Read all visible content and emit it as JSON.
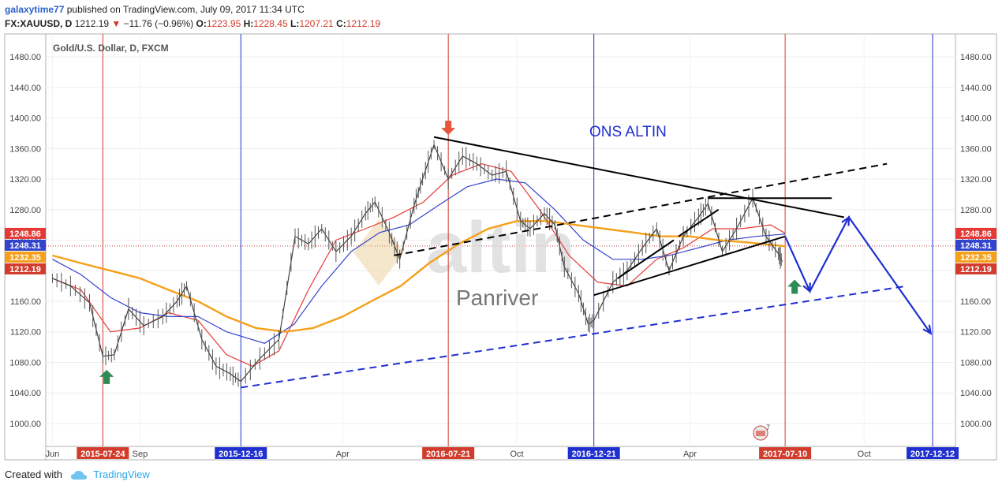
{
  "header": {
    "author": "galaxytime77",
    "published_text": "published on TradingView.com, July 09, 2017 11:34 UTC",
    "symbol": "FX:XAUUSD, D",
    "last_price": "1212.19",
    "change_arrow": "▼",
    "change": "−11.76 (−0.96%)",
    "open_label": "O:",
    "open": "1223.95",
    "high_label": "H:",
    "high": "1228.45",
    "low_label": "L:",
    "low": "1207.21",
    "close_label": "C:",
    "close": "1212.19"
  },
  "footer": {
    "created_with": "Created with",
    "brand": "TradingView"
  },
  "icons": {
    "tradingview_logo": "cloud-icon",
    "earnings_flag": "flag-icon"
  },
  "colors": {
    "price_red": "#d23c2c",
    "ma_red": "#e53935",
    "ma_blue": "#3344cc",
    "ma_orange": "#f5a01a",
    "marker_red": "#e8553d",
    "marker_green": "#2e8b57",
    "drawing_blue": "#1f2fd0"
  },
  "chart_data": {
    "type": "line",
    "title": "Gold/U.S. Dollar, D, FXCM",
    "annotations": {
      "ons_altin": "ONS ALTIN",
      "panriver": "Panriver",
      "watermark": "altin",
      "event_count": "7"
    },
    "y_axis": {
      "ticks": [
        1480,
        1440,
        1400,
        1360,
        1320,
        1280,
        1240,
        1200,
        1160,
        1120,
        1080,
        1040,
        1000
      ],
      "range": [
        970,
        1510
      ]
    },
    "x_axis": {
      "ticks": [
        {
          "label": "Jun",
          "date": "2015-06-01"
        },
        {
          "label": "Sep",
          "date": "2015-09-01"
        },
        {
          "label": "Apr",
          "date": "2016-04-01"
        },
        {
          "label": "Oct",
          "date": "2016-10-01"
        },
        {
          "label": "Apr",
          "date": "2017-04-01"
        },
        {
          "label": "Oct",
          "date": "2017-10-01"
        }
      ],
      "range": [
        "2015-05-25",
        "2018-01-05"
      ]
    },
    "vertical_lines": [
      {
        "date": "2015-07-24",
        "label": "2015-07-24",
        "color": "#d23c2c"
      },
      {
        "date": "2015-12-16",
        "label": "2015-12-16",
        "color": "#1f2fd0"
      },
      {
        "date": "2016-07-21",
        "label": "2016-07-21",
        "color": "#d23c2c"
      },
      {
        "date": "2016-12-21",
        "label": "2016-12-21",
        "color": "#1f2fd0"
      },
      {
        "date": "2017-07-10",
        "label": "2017-07-10",
        "color": "#d23c2c"
      },
      {
        "date": "2017-12-12",
        "label": "2017-12-12",
        "color": "#1f2fd0"
      }
    ],
    "price_labels": [
      {
        "value": "1248.86",
        "y": 1248.86,
        "color": "#e53935"
      },
      {
        "value": "1248.31",
        "y": 1248.31,
        "color": "#3344cc"
      },
      {
        "value": "1232.35",
        "y": 1232.35,
        "color": "#f5a01a"
      },
      {
        "value": "1212.19",
        "y": 1212.19,
        "color": "#d23c2c"
      }
    ],
    "series": [
      {
        "name": "XAUUSD",
        "color": "#333333",
        "points": [
          [
            "2015-06-01",
            1190
          ],
          [
            "2015-06-20",
            1180
          ],
          [
            "2015-07-10",
            1158
          ],
          [
            "2015-07-24",
            1088
          ],
          [
            "2015-08-05",
            1090
          ],
          [
            "2015-08-20",
            1150
          ],
          [
            "2015-09-05",
            1128
          ],
          [
            "2015-09-25",
            1140
          ],
          [
            "2015-10-10",
            1160
          ],
          [
            "2015-10-20",
            1180
          ],
          [
            "2015-11-05",
            1110
          ],
          [
            "2015-11-20",
            1075
          ],
          [
            "2015-12-05",
            1065
          ],
          [
            "2015-12-16",
            1055
          ],
          [
            "2016-01-05",
            1085
          ],
          [
            "2016-01-25",
            1110
          ],
          [
            "2016-02-11",
            1245
          ],
          [
            "2016-02-25",
            1235
          ],
          [
            "2016-03-10",
            1255
          ],
          [
            "2016-03-25",
            1225
          ],
          [
            "2016-04-10",
            1245
          ],
          [
            "2016-04-25",
            1275
          ],
          [
            "2016-05-05",
            1290
          ],
          [
            "2016-05-20",
            1250
          ],
          [
            "2016-05-31",
            1215
          ],
          [
            "2016-06-15",
            1285
          ],
          [
            "2016-06-24",
            1320
          ],
          [
            "2016-07-06",
            1365
          ],
          [
            "2016-07-21",
            1320
          ],
          [
            "2016-08-05",
            1350
          ],
          [
            "2016-08-20",
            1340
          ],
          [
            "2016-09-05",
            1325
          ],
          [
            "2016-09-20",
            1330
          ],
          [
            "2016-10-05",
            1265
          ],
          [
            "2016-10-15",
            1255
          ],
          [
            "2016-10-30",
            1275
          ],
          [
            "2016-11-10",
            1260
          ],
          [
            "2016-11-20",
            1205
          ],
          [
            "2016-12-05",
            1170
          ],
          [
            "2016-12-15",
            1130
          ],
          [
            "2016-12-21",
            1135
          ],
          [
            "2017-01-10",
            1185
          ],
          [
            "2017-01-25",
            1200
          ],
          [
            "2017-02-10",
            1230
          ],
          [
            "2017-02-25",
            1255
          ],
          [
            "2017-03-10",
            1200
          ],
          [
            "2017-03-25",
            1245
          ],
          [
            "2017-04-10",
            1270
          ],
          [
            "2017-04-20",
            1288
          ],
          [
            "2017-05-05",
            1225
          ],
          [
            "2017-05-20",
            1255
          ],
          [
            "2017-06-06",
            1295
          ],
          [
            "2017-06-20",
            1245
          ],
          [
            "2017-07-03",
            1222
          ],
          [
            "2017-07-07",
            1212
          ]
        ]
      },
      {
        "name": "MA red",
        "color": "#e53935",
        "points": [
          [
            "2015-06-01",
            1190
          ],
          [
            "2015-07-01",
            1175
          ],
          [
            "2015-08-01",
            1120
          ],
          [
            "2015-09-01",
            1125
          ],
          [
            "2015-10-01",
            1145
          ],
          [
            "2015-11-01",
            1135
          ],
          [
            "2015-12-01",
            1090
          ],
          [
            "2015-12-28",
            1075
          ],
          [
            "2016-01-25",
            1095
          ],
          [
            "2016-02-25",
            1175
          ],
          [
            "2016-03-25",
            1240
          ],
          [
            "2016-04-25",
            1255
          ],
          [
            "2016-05-25",
            1270
          ],
          [
            "2016-06-25",
            1290
          ],
          [
            "2016-07-25",
            1325
          ],
          [
            "2016-08-25",
            1340
          ],
          [
            "2016-09-25",
            1330
          ],
          [
            "2016-10-25",
            1280
          ],
          [
            "2016-11-25",
            1220
          ],
          [
            "2016-12-25",
            1185
          ],
          [
            "2017-01-25",
            1180
          ],
          [
            "2017-02-25",
            1215
          ],
          [
            "2017-03-25",
            1230
          ],
          [
            "2017-04-25",
            1255
          ],
          [
            "2017-05-25",
            1255
          ],
          [
            "2017-06-25",
            1260
          ],
          [
            "2017-07-10",
            1249
          ]
        ]
      },
      {
        "name": "MA blue",
        "color": "#3344cc",
        "points": [
          [
            "2015-06-01",
            1215
          ],
          [
            "2015-07-01",
            1195
          ],
          [
            "2015-08-01",
            1165
          ],
          [
            "2015-09-01",
            1145
          ],
          [
            "2015-10-01",
            1140
          ],
          [
            "2015-11-01",
            1140
          ],
          [
            "2015-12-01",
            1120
          ],
          [
            "2016-01-10",
            1105
          ],
          [
            "2016-02-10",
            1130
          ],
          [
            "2016-03-10",
            1180
          ],
          [
            "2016-04-10",
            1225
          ],
          [
            "2016-05-10",
            1250
          ],
          [
            "2016-06-10",
            1260
          ],
          [
            "2016-07-10",
            1285
          ],
          [
            "2016-08-10",
            1310
          ],
          [
            "2016-09-10",
            1320
          ],
          [
            "2016-10-10",
            1315
          ],
          [
            "2016-11-10",
            1280
          ],
          [
            "2016-12-10",
            1240
          ],
          [
            "2017-01-10",
            1215
          ],
          [
            "2017-02-10",
            1215
          ],
          [
            "2017-03-10",
            1220
          ],
          [
            "2017-04-10",
            1230
          ],
          [
            "2017-05-10",
            1240
          ],
          [
            "2017-06-10",
            1245
          ],
          [
            "2017-07-10",
            1248
          ]
        ]
      },
      {
        "name": "MA orange",
        "color": "#f5a01a",
        "points": [
          [
            "2015-06-01",
            1220
          ],
          [
            "2015-07-01",
            1210
          ],
          [
            "2015-08-01",
            1200
          ],
          [
            "2015-09-01",
            1190
          ],
          [
            "2015-10-01",
            1175
          ],
          [
            "2015-11-01",
            1160
          ],
          [
            "2015-12-01",
            1140
          ],
          [
            "2016-01-01",
            1125
          ],
          [
            "2016-02-01",
            1120
          ],
          [
            "2016-03-01",
            1125
          ],
          [
            "2016-04-01",
            1140
          ],
          [
            "2016-05-01",
            1160
          ],
          [
            "2016-06-01",
            1180
          ],
          [
            "2016-07-01",
            1210
          ],
          [
            "2016-08-01",
            1235
          ],
          [
            "2016-09-01",
            1255
          ],
          [
            "2016-10-01",
            1265
          ],
          [
            "2016-11-01",
            1265
          ],
          [
            "2016-12-01",
            1260
          ],
          [
            "2017-01-01",
            1255
          ],
          [
            "2017-02-01",
            1250
          ],
          [
            "2017-03-01",
            1245
          ],
          [
            "2017-04-01",
            1245
          ],
          [
            "2017-05-01",
            1240
          ],
          [
            "2017-06-01",
            1237
          ],
          [
            "2017-07-10",
            1232
          ]
        ]
      }
    ],
    "drawings": [
      {
        "type": "line",
        "from": [
          "2016-07-06",
          1375
        ],
        "to": [
          "2017-09-10",
          1270
        ],
        "color": "#000000",
        "dash": false
      },
      {
        "type": "line",
        "from": [
          "2016-12-21",
          1168
        ],
        "to": [
          "2017-07-10",
          1245
        ],
        "color": "#000000",
        "dash": false
      },
      {
        "type": "line",
        "from": [
          "2017-04-20",
          1295
        ],
        "to": [
          "2017-08-28",
          1295
        ],
        "color": "#000000",
        "dash": false
      },
      {
        "type": "line",
        "from": [
          "2017-01-15",
          1190
        ],
        "to": [
          "2017-03-15",
          1240
        ],
        "color": "#000000",
        "dash": false
      },
      {
        "type": "line",
        "from": [
          "2017-03-20",
          1245
        ],
        "to": [
          "2017-05-01",
          1280
        ],
        "color": "#000000",
        "dash": false
      },
      {
        "type": "line",
        "from": [
          "2016-05-25",
          1220
        ],
        "to": [
          "2017-10-25",
          1340
        ],
        "color": "#000000",
        "dash": true
      },
      {
        "type": "line",
        "from": [
          "2015-12-16",
          1047
        ],
        "to": [
          "2017-11-15",
          1180
        ],
        "color": "#1f2fd0",
        "dash": true
      },
      {
        "type": "polyline",
        "color": "#1f2fd0",
        "points": [
          [
            "2017-07-10",
            1245
          ],
          [
            "2017-08-05",
            1173
          ],
          [
            "2017-09-15",
            1270
          ],
          [
            "2017-12-10",
            1118
          ]
        ]
      }
    ],
    "markers": [
      {
        "type": "arrow-up",
        "date": "2015-07-28",
        "value": 1060,
        "color": "#2e8b57"
      },
      {
        "type": "arrow-down",
        "date": "2016-07-21",
        "value": 1388,
        "color": "#e8553d"
      },
      {
        "type": "arrow-up",
        "date": "2017-07-20",
        "value": 1178,
        "color": "#2e8b57"
      }
    ]
  }
}
